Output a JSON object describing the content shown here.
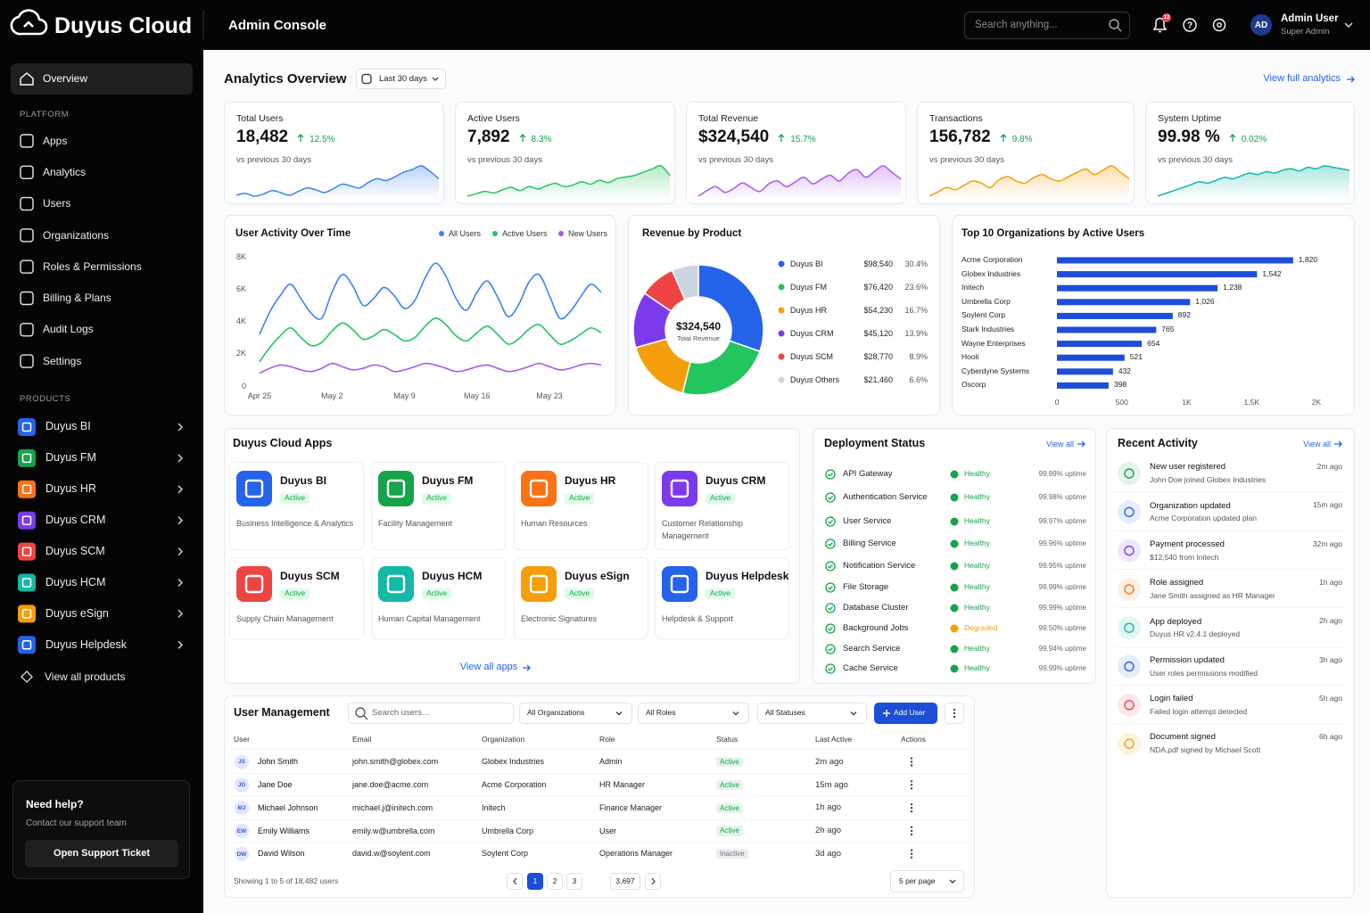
{
  "header": {
    "brand": "Duyus Cloud",
    "console": "Admin Console",
    "search_placeholder": "Search anything...",
    "notification_count": "12",
    "user_initials": "AD",
    "user_name": "Admin User",
    "user_role": "Super Admin"
  },
  "sidebar": {
    "overview": "Overview",
    "platform_title": "PLATFORM",
    "platform": [
      "Apps",
      "Analytics",
      "Users",
      "Organizations",
      "Roles & Permissions",
      "Billing & Plans",
      "Audit Logs",
      "Settings"
    ],
    "products_title": "PRODUCTS",
    "view_all": "View all products",
    "help": {
      "title": "Need help?",
      "text": "Contact our support team",
      "button": "Open Support Ticket"
    }
  },
  "products": [
    {
      "name": "Duyus BI",
      "color": "#2563eb",
      "status": "Active",
      "description": "Business Intelligence & Analytics"
    },
    {
      "name": "Duyus FM",
      "color": "#16a34a",
      "status": "Active",
      "description": "Facility Management"
    },
    {
      "name": "Duyus HR",
      "color": "#f97316",
      "status": "Active",
      "description": "Human Resources"
    },
    {
      "name": "Duyus CRM",
      "color": "#7c3aed",
      "status": "Active",
      "description": "Customer Relationship Management"
    },
    {
      "name": "Duyus SCM",
      "color": "#ef4444",
      "status": "Active",
      "description": "Supply Chain Management"
    },
    {
      "name": "Duyus HCM",
      "color": "#14b8a6",
      "status": "Active",
      "description": "Human Capital Management"
    },
    {
      "name": "Duyus eSign",
      "color": "#f59e0b",
      "status": "Active",
      "description": "Electronic Signatures"
    },
    {
      "name": "Duyus Helpdesk",
      "color": "#2563eb",
      "status": "Active",
      "description": "Helpdesk & Support"
    }
  ],
  "analytics": {
    "title": "Analytics Overview",
    "range": "Last 30 days",
    "link": "View full analytics",
    "kpis": [
      {
        "label": "Total Users",
        "value": "18,482",
        "change": "12.5%",
        "note": "vs previous 30 days",
        "sparkline": {
          "type": "area",
          "color": "#3b82f6",
          "values": [
            30,
            32,
            29,
            31,
            35,
            33,
            30,
            34,
            38,
            36,
            33,
            37,
            42,
            40,
            38,
            44,
            48,
            46,
            50,
            55,
            58,
            62,
            56,
            48
          ]
        }
      },
      {
        "label": "Active Users",
        "value": "7,892",
        "change": "8.3%",
        "note": "vs previous 30 days",
        "sparkline": {
          "type": "area",
          "color": "#22c55e",
          "values": [
            22,
            25,
            28,
            26,
            30,
            33,
            29,
            34,
            31,
            35,
            38,
            34,
            36,
            40,
            37,
            42,
            39,
            44,
            46,
            48,
            52,
            56,
            60,
            48
          ]
        }
      },
      {
        "label": "Total Revenue",
        "value": "$324,540",
        "change": "15.7%",
        "note": "vs previous 30 days",
        "sparkline": {
          "type": "area",
          "color": "#a855f7",
          "values": [
            20,
            26,
            30,
            24,
            28,
            34,
            29,
            25,
            33,
            36,
            30,
            35,
            40,
            33,
            38,
            42,
            36,
            44,
            48,
            40,
            46,
            52,
            45,
            38
          ]
        }
      },
      {
        "label": "Transactions",
        "value": "156,782",
        "change": "9.8%",
        "note": "vs previous 30 days",
        "sparkline": {
          "type": "area",
          "color": "#f59e0b",
          "values": [
            30,
            34,
            38,
            36,
            40,
            44,
            42,
            38,
            45,
            48,
            44,
            42,
            47,
            50,
            46,
            44,
            48,
            52,
            55,
            50,
            54,
            58,
            52,
            46
          ]
        }
      },
      {
        "label": "System Uptime",
        "value": "99.98 %",
        "change": "0.02%",
        "note": "vs previous 30 days",
        "sparkline": {
          "type": "area",
          "color": "#14b8a6",
          "values": [
            22,
            26,
            30,
            34,
            38,
            42,
            40,
            44,
            48,
            46,
            50,
            54,
            52,
            56,
            54,
            58,
            60,
            57,
            62,
            60,
            64,
            62,
            60,
            58
          ]
        }
      }
    ]
  },
  "activity_chart": {
    "type": "line",
    "title": "User Activity Over Time",
    "legend": "top-right",
    "grid": false,
    "categories": [
      "Apr 25",
      null,
      null,
      null,
      null,
      null,
      null,
      "May 2",
      null,
      null,
      null,
      null,
      null,
      null,
      "May 9",
      null,
      null,
      null,
      null,
      null,
      null,
      "May 16",
      null,
      null,
      null,
      null,
      null,
      null,
      "May 23",
      null,
      null,
      null,
      null,
      null
    ],
    "series": [
      {
        "name": "All Users",
        "color": "#3b82f6",
        "values": [
          3200,
          4600,
          5600,
          6300,
          5400,
          4500,
          4200,
          5800,
          6900,
          6200,
          5000,
          5400,
          6100,
          5600,
          4800,
          5300,
          6700,
          7600,
          6800,
          5400,
          4700,
          5800,
          6500,
          5500,
          4300,
          5000,
          6400,
          6900,
          5600,
          4200,
          4600,
          5500,
          6300,
          5800
        ]
      },
      {
        "name": "Active Users",
        "color": "#22c55e",
        "values": [
          1500,
          2400,
          3100,
          3600,
          3000,
          2500,
          2700,
          3400,
          3900,
          3500,
          2900,
          3100,
          3500,
          3200,
          2800,
          3000,
          3700,
          4200,
          3800,
          3100,
          2800,
          3300,
          3700,
          3200,
          2600,
          2900,
          3500,
          3800,
          3200,
          2600,
          2800,
          3200,
          3600,
          3300
        ]
      },
      {
        "name": "New Users",
        "color": "#a855f7",
        "values": [
          800,
          1100,
          1300,
          1200,
          1000,
          900,
          1100,
          1400,
          1200,
          1000,
          1100,
          1300,
          1200,
          900,
          1000,
          1200,
          1400,
          1300,
          1100,
          900,
          1000,
          1200,
          1300,
          1100,
          900,
          1000,
          1200,
          1400,
          1200,
          1000,
          1100,
          1300,
          1400,
          1300
        ]
      }
    ],
    "ylim": [
      0,
      8000
    ],
    "yticks": [
      0,
      {
        "value": 2000,
        "label": "2K"
      },
      {
        "value": 4000,
        "label": "4K"
      },
      {
        "value": 6000,
        "label": "6K"
      },
      {
        "value": 8000,
        "label": "8K"
      }
    ]
  },
  "revenue_chart": {
    "type": "pie",
    "title": "Revenue by Product",
    "total_label": "$324,540",
    "total_caption": "Total Revenue",
    "categories": [
      "Duyus BI",
      "Duyus FM",
      "Duyus HR",
      "Duyus CRM",
      "Duyus SCM",
      "Duyus Others"
    ],
    "colors": [
      "#2563eb",
      "#22c55e",
      "#f59e0b",
      "#7c3aed",
      "#ef4444",
      "#cbd5e1"
    ],
    "values": [
      98540,
      76420,
      54230,
      45120,
      28770,
      21460
    ],
    "value_labels": [
      "$98,540",
      "$76,420",
      "$54,230",
      "$45,120",
      "$28,770",
      "$21,460"
    ],
    "shares": [
      "30.4%",
      "23.6%",
      "16.7%",
      "13.9%",
      "8.9%",
      "6.6%"
    ]
  },
  "org_chart": {
    "type": "bar",
    "orientation": "horizontal",
    "title": "Top 10 Organizations by Active Users",
    "color": "#1d4ed8",
    "categories": [
      "Acme Corporation",
      "Globex Industries",
      "Initech",
      "Umbrella Corp",
      "Soylent Corp",
      "Stark Industries",
      "Wayne Enterprises",
      "Hooli",
      "Cyberdyne Systems",
      "Oscorp"
    ],
    "values": [
      1820,
      1542,
      1238,
      1026,
      892,
      765,
      654,
      521,
      432,
      398
    ],
    "value_labels": [
      "1,820",
      "1,542",
      "1,238",
      "1,026",
      "892",
      "765",
      "654",
      "521",
      "432",
      "398"
    ],
    "xlim": [
      0,
      2000
    ],
    "xticks": [
      0,
      500,
      {
        "value": 1000,
        "label": "1K"
      },
      {
        "value": 1500,
        "label": "1.5K"
      },
      {
        "value": 2000,
        "label": "2K"
      }
    ]
  },
  "apps": {
    "title": "Duyus Cloud Apps",
    "link": "View all apps"
  },
  "deployment": {
    "title": "Deployment Status",
    "link": "View all",
    "services": [
      {
        "name": "API Gateway",
        "status": "Healthy",
        "color": "#16a34a",
        "uptime": "99.99% uptime"
      },
      {
        "name": "Authentication Service",
        "status": "Healthy",
        "color": "#16a34a",
        "uptime": "99.98% uptime"
      },
      {
        "name": "User Service",
        "status": "Healthy",
        "color": "#16a34a",
        "uptime": "99.97% uptime"
      },
      {
        "name": "Billing Service",
        "status": "Healthy",
        "color": "#16a34a",
        "uptime": "99.96% uptime"
      },
      {
        "name": "Notification Service",
        "status": "Healthy",
        "color": "#16a34a",
        "uptime": "99.95% uptime"
      },
      {
        "name": "File Storage",
        "status": "Healthy",
        "color": "#16a34a",
        "uptime": "99.99% uptime"
      },
      {
        "name": "Database Cluster",
        "status": "Healthy",
        "color": "#16a34a",
        "uptime": "99.99% uptime"
      },
      {
        "name": "Background Jobs",
        "status": "Degraded",
        "color": "#f59e0b",
        "uptime": "99.50% uptime"
      },
      {
        "name": "Search Service",
        "status": "Healthy",
        "color": "#16a34a",
        "uptime": "99.94% uptime"
      },
      {
        "name": "Cache Service",
        "status": "Healthy",
        "color": "#16a34a",
        "uptime": "99.99% uptime"
      }
    ]
  },
  "recent_activity": {
    "title": "Recent Activity",
    "link": "View all",
    "items": [
      {
        "title": "New user registered",
        "text": "John Doe joined Globex Industries",
        "time": "2m ago",
        "color": "#16a34a"
      },
      {
        "title": "Organization updated",
        "text": "Acme Corporation updated plan",
        "time": "15m ago",
        "color": "#2563eb"
      },
      {
        "title": "Payment processed",
        "text": "$12,540 from Initech",
        "time": "32m ago",
        "color": "#7c3aed"
      },
      {
        "title": "Role assigned",
        "text": "Jane Smith assigned as HR Manager",
        "time": "1h ago",
        "color": "#f97316"
      },
      {
        "title": "App deployed",
        "text": "Duyus HR v2.4.1 deployed",
        "time": "2h ago",
        "color": "#14b8a6"
      },
      {
        "title": "Permission updated",
        "text": "User roles permissions modified",
        "time": "3h ago",
        "color": "#2563eb"
      },
      {
        "title": "Login failed",
        "text": "Failed login attempt detected",
        "time": "5h ago",
        "color": "#ef4444"
      },
      {
        "title": "Document signed",
        "text": "NDA.pdf signed by Michael Scott",
        "time": "6h ago",
        "color": "#f59e0b"
      }
    ]
  },
  "users": {
    "title": "User Management",
    "search_placeholder": "Search users...",
    "filters": [
      "All Organizations",
      "All Roles",
      "All Statuses"
    ],
    "add_button": "Add User",
    "columns": [
      "User",
      "Email",
      "Organization",
      "Role",
      "Status",
      "Last Active",
      "Actions"
    ],
    "rows": [
      {
        "initials": "JS",
        "name": "John Smith",
        "email": "john.smith@globex.com",
        "organization": "Globex Industries",
        "role": "Admin",
        "status": "Active",
        "status_color": "#16a34a",
        "last_active": "2m ago"
      },
      {
        "initials": "JD",
        "name": "Jane Doe",
        "email": "jane.doe@acme.com",
        "organization": "Acme Corporation",
        "role": "HR Manager",
        "status": "Active",
        "status_color": "#16a34a",
        "last_active": "15m ago"
      },
      {
        "initials": "MJ",
        "name": "Michael Johnson",
        "email": "michael.j@initech.com",
        "organization": "Initech",
        "role": "Finance Manager",
        "status": "Active",
        "status_color": "#16a34a",
        "last_active": "1h ago"
      },
      {
        "initials": "EW",
        "name": "Emily Williams",
        "email": "emily.w@umbrella.com",
        "organization": "Umbrella Corp",
        "role": "User",
        "status": "Active",
        "status_color": "#16a34a",
        "last_active": "2h ago"
      },
      {
        "initials": "DW",
        "name": "David Wilson",
        "email": "david.w@soylent.com",
        "organization": "Soylent Corp",
        "role": "Operations Manager",
        "status": "Inactive",
        "status_color": "#6b7280",
        "last_active": "3d ago"
      }
    ],
    "summary": "Showing 1 to 5 of 18,482 users",
    "pages": [
      "1",
      "2",
      "3",
      "3,697"
    ],
    "per_page": "5 per page"
  }
}
